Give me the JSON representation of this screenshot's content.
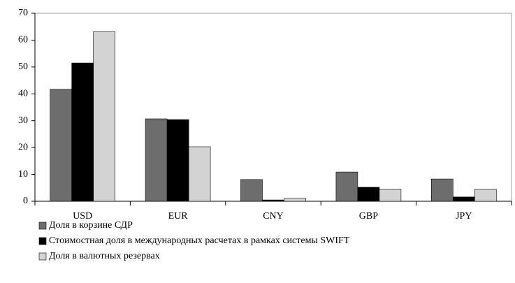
{
  "chart_data": {
    "type": "bar",
    "categories": [
      "USD",
      "EUR",
      "CNY",
      "GBP",
      "JPY"
    ],
    "series": [
      {
        "name": "Доля в корзине СДР",
        "color": "#6d6d6d",
        "values": [
          41.7,
          30.7,
          8.1,
          10.9,
          8.3
        ]
      },
      {
        "name": "Стоимостная доля в международных расчетах в рамках системы SWIFT",
        "color": "#000000",
        "values": [
          51.5,
          30.4,
          0.5,
          5.2,
          1.6
        ]
      },
      {
        "name": "Доля в валютных резервах",
        "color": "#d3d3d3",
        "values": [
          63.2,
          20.3,
          1.1,
          4.4,
          4.4
        ]
      }
    ],
    "ylim": [
      0,
      70
    ],
    "yticks": [
      0,
      10,
      20,
      30,
      40,
      50,
      60,
      70
    ],
    "grid": false,
    "legend": "bottom"
  }
}
